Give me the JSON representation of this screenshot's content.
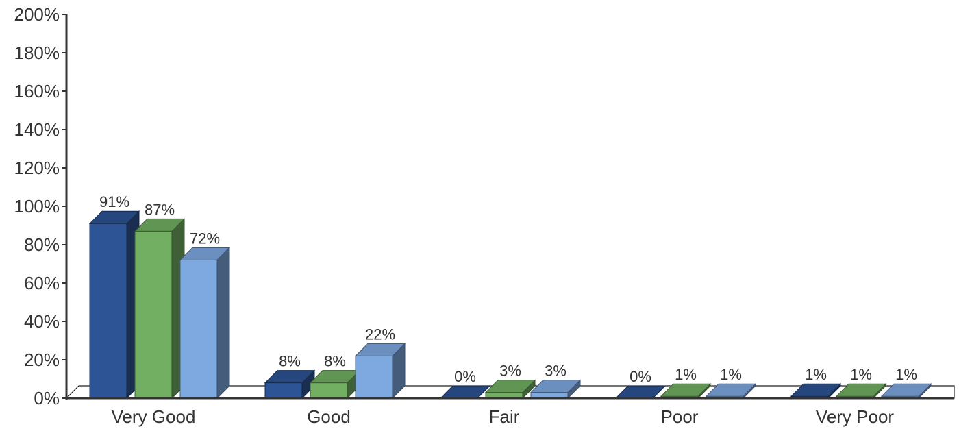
{
  "chart_data": {
    "type": "bar",
    "categories": [
      "Very Good",
      "Good",
      "Fair",
      "Poor",
      "Very Poor"
    ],
    "series": [
      {
        "values": [
          91,
          8,
          0,
          0,
          1
        ],
        "labels": [
          "91%",
          "8%",
          "0%",
          "0%",
          "1%"
        ],
        "color": "#2d5494"
      },
      {
        "values": [
          87,
          8,
          3,
          1,
          1
        ],
        "labels": [
          "87%",
          "8%",
          "3%",
          "1%",
          "1%"
        ],
        "color": "#72af62"
      },
      {
        "values": [
          72,
          22,
          3,
          1,
          1
        ],
        "labels": [
          "72%",
          "22%",
          "3%",
          "1%",
          "1%"
        ],
        "color": "#7ea8e0"
      }
    ],
    "yticks": [
      "0%",
      "20%",
      "40%",
      "60%",
      "80%",
      "100%",
      "120%",
      "140%",
      "160%",
      "180%",
      "200%"
    ],
    "ylim": [
      0,
      200
    ],
    "grid": false,
    "legend": "none",
    "style": "3d-bars"
  }
}
